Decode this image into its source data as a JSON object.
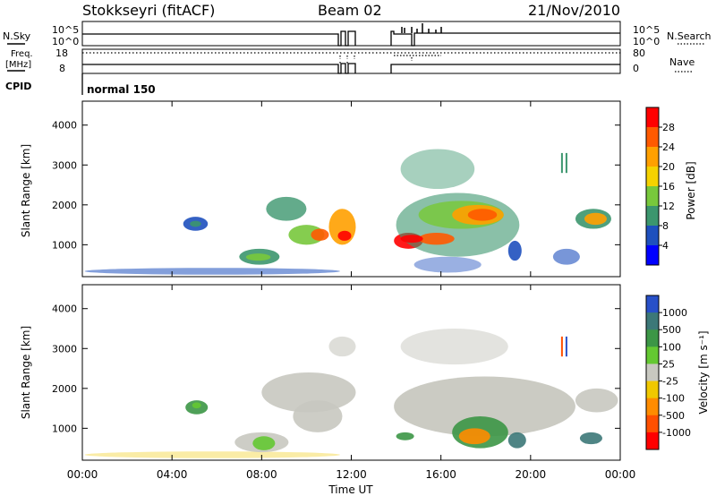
{
  "header": {
    "station": "Stokkseyri (fitACF)",
    "beam": "Beam 02",
    "date": "21/Nov/2010"
  },
  "param_panels": {
    "nsky_label": "N.Sky",
    "nsearch_label": "N.Search",
    "nsky_ticks": [
      "10^5",
      "10^0"
    ],
    "nsearch_ticks": [
      "10^5",
      "10^0"
    ],
    "freq_label": "Freq.",
    "freq_unit": "[MHz]",
    "freq_ticks": [
      "18",
      "8"
    ],
    "nave_label": "Nave",
    "nave_ticks": [
      "80",
      "0"
    ],
    "cpid_label": "CPID",
    "cpid_value": "normal 150"
  },
  "chart_data": [
    {
      "type": "heatmap",
      "title": "",
      "ylabel": "Slant Range [km]",
      "xlabel": "",
      "yticks": [
        1000,
        2000,
        3000,
        4000
      ],
      "ylim": [
        200,
        4600
      ],
      "xlim": [
        0,
        24
      ],
      "colorbar_label": "Power [dB]",
      "colorbar_ticks": [
        "28",
        "24",
        "20",
        "16",
        "12",
        "8",
        "4"
      ],
      "colorbar_colors": [
        "#ff0000",
        "#ff5a00",
        "#ffa000",
        "#f5d200",
        "#78c83c",
        "#3c966e",
        "#1e50be",
        "#0000ff"
      ]
    },
    {
      "type": "heatmap",
      "title": "",
      "ylabel": "Slant Range [km]",
      "xlabel": "Time UT",
      "yticks": [
        1000,
        2000,
        3000,
        4000
      ],
      "ylim": [
        200,
        4600
      ],
      "xlim": [
        0,
        24
      ],
      "xticks": [
        "00:00",
        "04:00",
        "08:00",
        "12:00",
        "16:00",
        "20:00",
        "00:00"
      ],
      "colorbar_label": "Velocity [m s⁻¹]",
      "colorbar_ticks": [
        "1000",
        "500",
        "100",
        "25",
        "-25",
        "-100",
        "-500",
        "-1000"
      ],
      "colorbar_colors": [
        "#2850c8",
        "#3c7878",
        "#3c9646",
        "#64c832",
        "#c8c8c0",
        "#f0c800",
        "#ff8c00",
        "#ff5000",
        "#ff0000"
      ]
    }
  ]
}
